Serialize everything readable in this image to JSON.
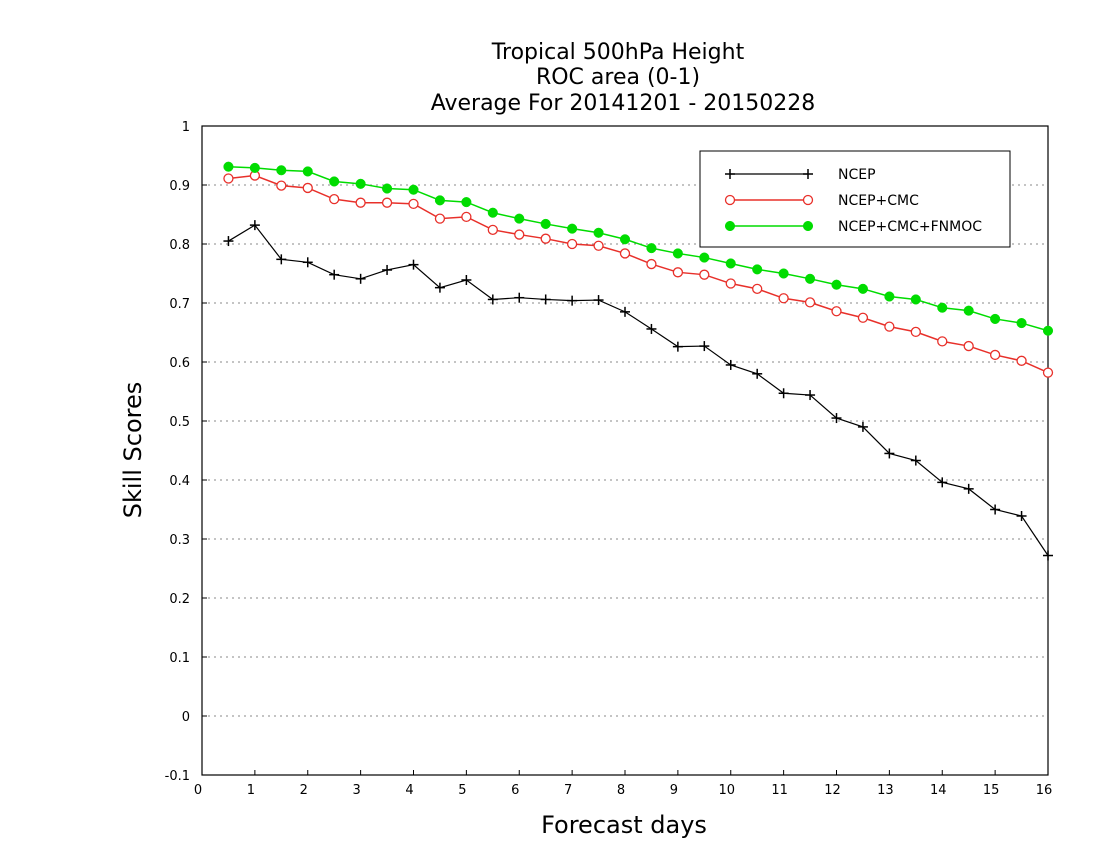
{
  "chart_data": {
    "type": "line",
    "title": [
      "Tropical 500hPa Height",
      "ROC area (0-1)",
      "Average For 20141201 - 20150228"
    ],
    "xlabel": "Forecast days",
    "ylabel": "Skill Scores",
    "xlim": [
      0,
      16
    ],
    "ylim": [
      -0.1,
      1
    ],
    "xticks": [
      0,
      1,
      2,
      3,
      4,
      5,
      6,
      7,
      8,
      9,
      10,
      11,
      12,
      13,
      14,
      15,
      16
    ],
    "yticks": [
      -0.1,
      0,
      0.1,
      0.2,
      0.3,
      0.4,
      0.5,
      0.6,
      0.7,
      0.8,
      0.9,
      1
    ],
    "ytick_labels": [
      "-0.1",
      "0",
      "0.1",
      "0.2",
      "0.3",
      "0.4",
      "0.5",
      "0.6",
      "0.7",
      "0.8",
      "0.9",
      "1"
    ],
    "grid": "horizontal-dotted",
    "legend_position": "top-right",
    "x": [
      0.5,
      1,
      1.5,
      2,
      2.5,
      3,
      3.5,
      4,
      4.5,
      5,
      5.5,
      6,
      6.5,
      7,
      7.5,
      8,
      8.5,
      9,
      9.5,
      10,
      10.5,
      11,
      11.5,
      12,
      12.5,
      13,
      13.5,
      14,
      14.5,
      15,
      15.5,
      16
    ],
    "series": [
      {
        "name": "NCEP",
        "color": "#000000",
        "marker": "plus",
        "values": [
          0.805,
          0.832,
          0.774,
          0.769,
          0.748,
          0.741,
          0.756,
          0.765,
          0.726,
          0.739,
          0.706,
          0.709,
          0.706,
          0.704,
          0.705,
          0.685,
          0.656,
          0.626,
          0.627,
          0.595,
          0.58,
          0.547,
          0.544,
          0.505,
          0.49,
          0.445,
          0.433,
          0.396,
          0.385,
          0.35,
          0.339,
          0.272
        ]
      },
      {
        "name": "NCEP+CMC",
        "color": "#e8302a",
        "marker": "open-circle",
        "values": [
          0.911,
          0.916,
          0.899,
          0.895,
          0.876,
          0.87,
          0.87,
          0.868,
          0.843,
          0.846,
          0.824,
          0.816,
          0.809,
          0.8,
          0.797,
          0.784,
          0.766,
          0.752,
          0.748,
          0.733,
          0.724,
          0.708,
          0.701,
          0.686,
          0.675,
          0.66,
          0.651,
          0.635,
          0.627,
          0.612,
          0.602,
          0.582
        ]
      },
      {
        "name": "NCEP+CMC+FNMOC",
        "color": "#00dc00",
        "marker": "filled-circle",
        "values": [
          0.931,
          0.929,
          0.925,
          0.923,
          0.906,
          0.902,
          0.894,
          0.892,
          0.874,
          0.871,
          0.853,
          0.843,
          0.834,
          0.826,
          0.819,
          0.808,
          0.793,
          0.784,
          0.777,
          0.767,
          0.757,
          0.75,
          0.741,
          0.731,
          0.724,
          0.711,
          0.706,
          0.692,
          0.687,
          0.673,
          0.666,
          0.653
        ]
      }
    ]
  }
}
